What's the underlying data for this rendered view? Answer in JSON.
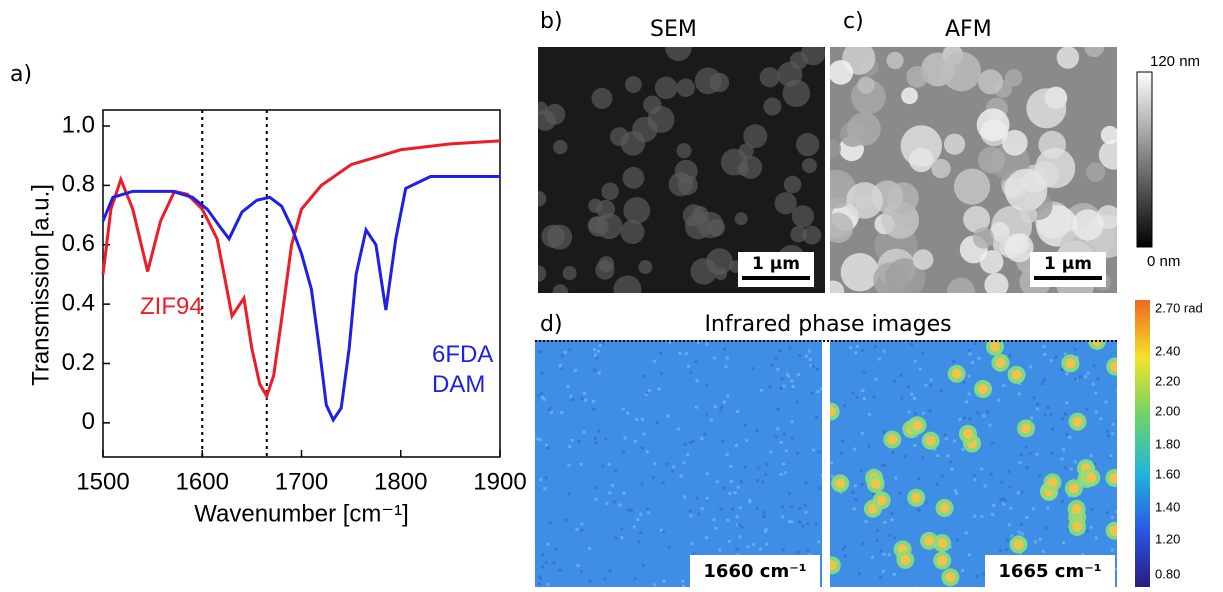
{
  "chart_data": {
    "type": "line",
    "xlabel": "Wavenumber [cm⁻¹]",
    "ylabel": "Transmission [a.u.]",
    "xlim": [
      1500,
      1900
    ],
    "xticks": [
      1500,
      1600,
      1700,
      1800,
      1900
    ],
    "ylim": [
      -0.115,
      1.054
    ],
    "yticks": [
      0,
      0.2,
      0.4,
      0.6,
      0.8,
      {
        "value": 1,
        "label": "1.0"
      }
    ],
    "vlines": [
      1600,
      1665
    ],
    "series": [
      {
        "name": "ZIF94",
        "color": "#ee1c25",
        "x": [
          1500,
          1508,
          1518,
          1530,
          1545,
          1558,
          1572,
          1585,
          1600,
          1615,
          1622,
          1630,
          1642,
          1650,
          1658,
          1665,
          1672,
          1680,
          1690,
          1700,
          1720,
          1750,
          1800,
          1850,
          1900
        ],
        "values": [
          0.5,
          0.72,
          0.82,
          0.72,
          0.51,
          0.68,
          0.78,
          0.77,
          0.72,
          0.62,
          0.5,
          0.36,
          0.42,
          0.25,
          0.13,
          0.09,
          0.16,
          0.35,
          0.6,
          0.72,
          0.8,
          0.87,
          0.92,
          0.94,
          0.95
        ]
      },
      {
        "name": "6FDA DAM",
        "color": "#1f1fe8",
        "x": [
          1500,
          1510,
          1530,
          1550,
          1570,
          1590,
          1605,
          1618,
          1627,
          1640,
          1655,
          1668,
          1680,
          1690,
          1700,
          1710,
          1718,
          1725,
          1732,
          1740,
          1748,
          1755,
          1765,
          1775,
          1785,
          1795,
          1805,
          1830,
          1900
        ],
        "values": [
          0.68,
          0.76,
          0.78,
          0.78,
          0.78,
          0.76,
          0.72,
          0.66,
          0.62,
          0.71,
          0.75,
          0.76,
          0.73,
          0.66,
          0.57,
          0.45,
          0.25,
          0.06,
          0.01,
          0.05,
          0.25,
          0.5,
          0.65,
          0.6,
          0.38,
          0.62,
          0.79,
          0.83,
          0.83
        ]
      }
    ]
  },
  "panels": {
    "a": {
      "label": "a)"
    },
    "b": {
      "label": "b)",
      "title": "SEM",
      "scale": "1 μm"
    },
    "c": {
      "label": "c)",
      "title": "AFM",
      "scale": "1 μm",
      "colorbar": [
        "120 nm",
        "0 nm"
      ]
    },
    "d": {
      "label": "d)",
      "title": "Infrared phase images",
      "images": [
        "1660 cm⁻¹",
        "1665 cm⁻¹"
      ],
      "colorbar": [
        "2.70 rad",
        "2.40",
        "2.20",
        "2.00",
        "1.80",
        "1.60",
        "1.40",
        "1.20",
        "0.80"
      ]
    }
  }
}
